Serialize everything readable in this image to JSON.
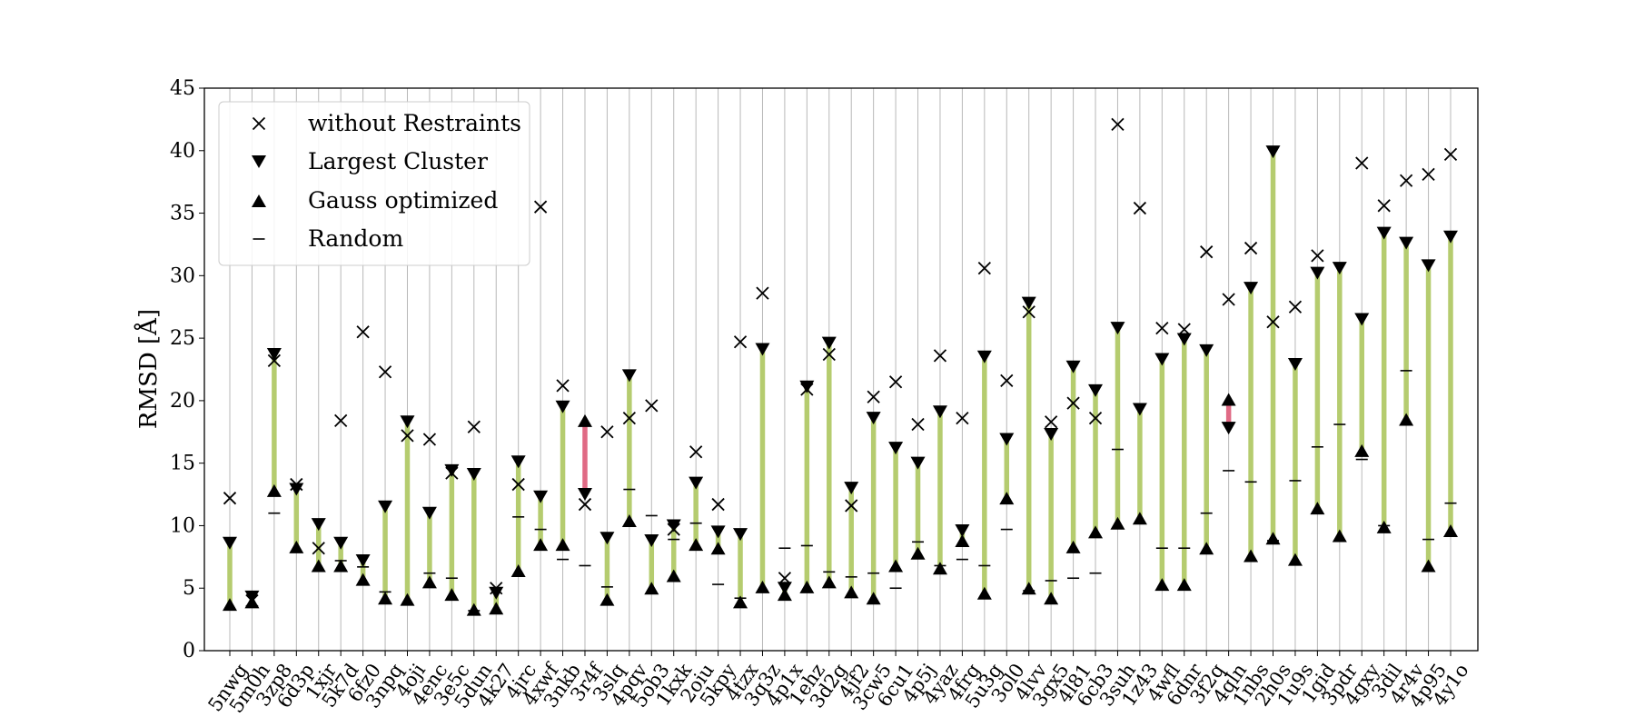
{
  "chart_data": {
    "type": "scatter",
    "ylabel": "RMSD [Å]",
    "ylim": [
      0,
      45
    ],
    "yticks": [
      0,
      5,
      10,
      15,
      20,
      25,
      30,
      35,
      40,
      45
    ],
    "grid": "vertical",
    "legend_position": "top-left",
    "colors": {
      "improved": "#b5cc6f",
      "worse": "#e06a85",
      "marker": "#000000",
      "grid": "#b8b8b8"
    },
    "categories": [
      "5nwg",
      "5m0h",
      "3zp8",
      "6d3p",
      "1xjr",
      "5k7d",
      "6fz0",
      "3npq",
      "4oji",
      "4enc",
      "3e5c",
      "5dun",
      "4k27",
      "4jrc",
      "4xwf",
      "3nkb",
      "3r4f",
      "3slq",
      "4pqv",
      "5ob3",
      "1kxk",
      "2oiu",
      "5kpy",
      "4tzx",
      "3q3z",
      "4p1x",
      "1ehz",
      "3d2g",
      "4jf2",
      "3cw5",
      "6cu1",
      "4p5j",
      "4yaz",
      "4frg",
      "5u3g",
      "3ol0",
      "4lvv",
      "3gx5",
      "4l81",
      "6cb3",
      "3suh",
      "1z43",
      "4wfl",
      "6dnr",
      "3f2q",
      "4qln",
      "1nbs",
      "2h0s",
      "1u9s",
      "1gid",
      "3pdr",
      "4gxy",
      "3dil",
      "4r4v",
      "4p95",
      "4y1o"
    ],
    "series": [
      {
        "name": "without Restraints",
        "marker": "x",
        "values": [
          12.2,
          4.0,
          23.2,
          13.3,
          8.2,
          18.4,
          25.5,
          22.3,
          17.2,
          16.9,
          14.2,
          17.9,
          5.0,
          13.3,
          35.5,
          21.2,
          11.7,
          17.5,
          18.6,
          19.6,
          9.7,
          15.9,
          11.7,
          24.7,
          28.6,
          5.8,
          20.9,
          23.7,
          11.6,
          20.3,
          21.5,
          18.1,
          23.6,
          18.6,
          30.6,
          21.6,
          27.1,
          18.3,
          19.8,
          18.6,
          42.1,
          35.4,
          25.8,
          25.7,
          31.9,
          28.1,
          32.2,
          26.3,
          27.5,
          31.6,
          null,
          39.0,
          35.6,
          37.6,
          38.1,
          39.7
        ]
      },
      {
        "name": "Largest Cluster",
        "marker": "triangle-down",
        "values": [
          8.6,
          4.3,
          23.7,
          12.9,
          10.1,
          8.6,
          7.2,
          11.5,
          18.3,
          11.0,
          14.4,
          14.1,
          4.6,
          15.1,
          12.3,
          19.5,
          12.5,
          9.0,
          22.0,
          8.8,
          10.0,
          13.4,
          9.5,
          9.3,
          24.1,
          5.0,
          21.1,
          24.6,
          13.0,
          18.6,
          16.2,
          15.0,
          19.1,
          9.6,
          23.5,
          16.9,
          27.8,
          17.3,
          22.7,
          20.8,
          25.8,
          19.3,
          23.3,
          24.9,
          24.0,
          17.8,
          29.0,
          39.9,
          22.9,
          30.2,
          30.6,
          26.5,
          33.4,
          32.6,
          30.8,
          33.1
        ]
      },
      {
        "name": "Gauss optimized",
        "marker": "triangle-up",
        "values": [
          3.7,
          3.9,
          12.8,
          8.3,
          6.8,
          6.8,
          5.7,
          4.2,
          4.1,
          5.5,
          4.5,
          3.3,
          3.4,
          6.4,
          8.5,
          8.5,
          18.4,
          4.1,
          10.4,
          5.0,
          6.0,
          8.5,
          8.2,
          3.9,
          5.1,
          4.5,
          5.1,
          5.5,
          4.7,
          4.2,
          6.8,
          7.8,
          6.6,
          8.8,
          4.6,
          12.2,
          5.0,
          4.2,
          8.3,
          9.5,
          10.2,
          10.6,
          5.3,
          5.3,
          8.2,
          20.1,
          7.6,
          9.0,
          7.3,
          11.4,
          9.2,
          16.0,
          9.9,
          18.5,
          6.8,
          9.6
        ]
      },
      {
        "name": "Random",
        "marker": "hline",
        "values": [
          null,
          null,
          11.0,
          null,
          null,
          7.2,
          6.7,
          4.7,
          null,
          6.2,
          5.8,
          3.2,
          null,
          10.7,
          9.7,
          7.3,
          6.8,
          5.1,
          12.9,
          10.8,
          8.9,
          10.2,
          5.3,
          4.2,
          null,
          8.2,
          8.4,
          6.3,
          5.9,
          6.2,
          5.0,
          8.7,
          6.8,
          7.3,
          6.8,
          9.7,
          4.8,
          5.6,
          5.8,
          6.2,
          16.1,
          null,
          8.2,
          8.2,
          11.0,
          14.4,
          13.5,
          8.8,
          13.6,
          16.3,
          18.1,
          15.3,
          10.0,
          22.4,
          8.9,
          11.8
        ]
      }
    ]
  }
}
